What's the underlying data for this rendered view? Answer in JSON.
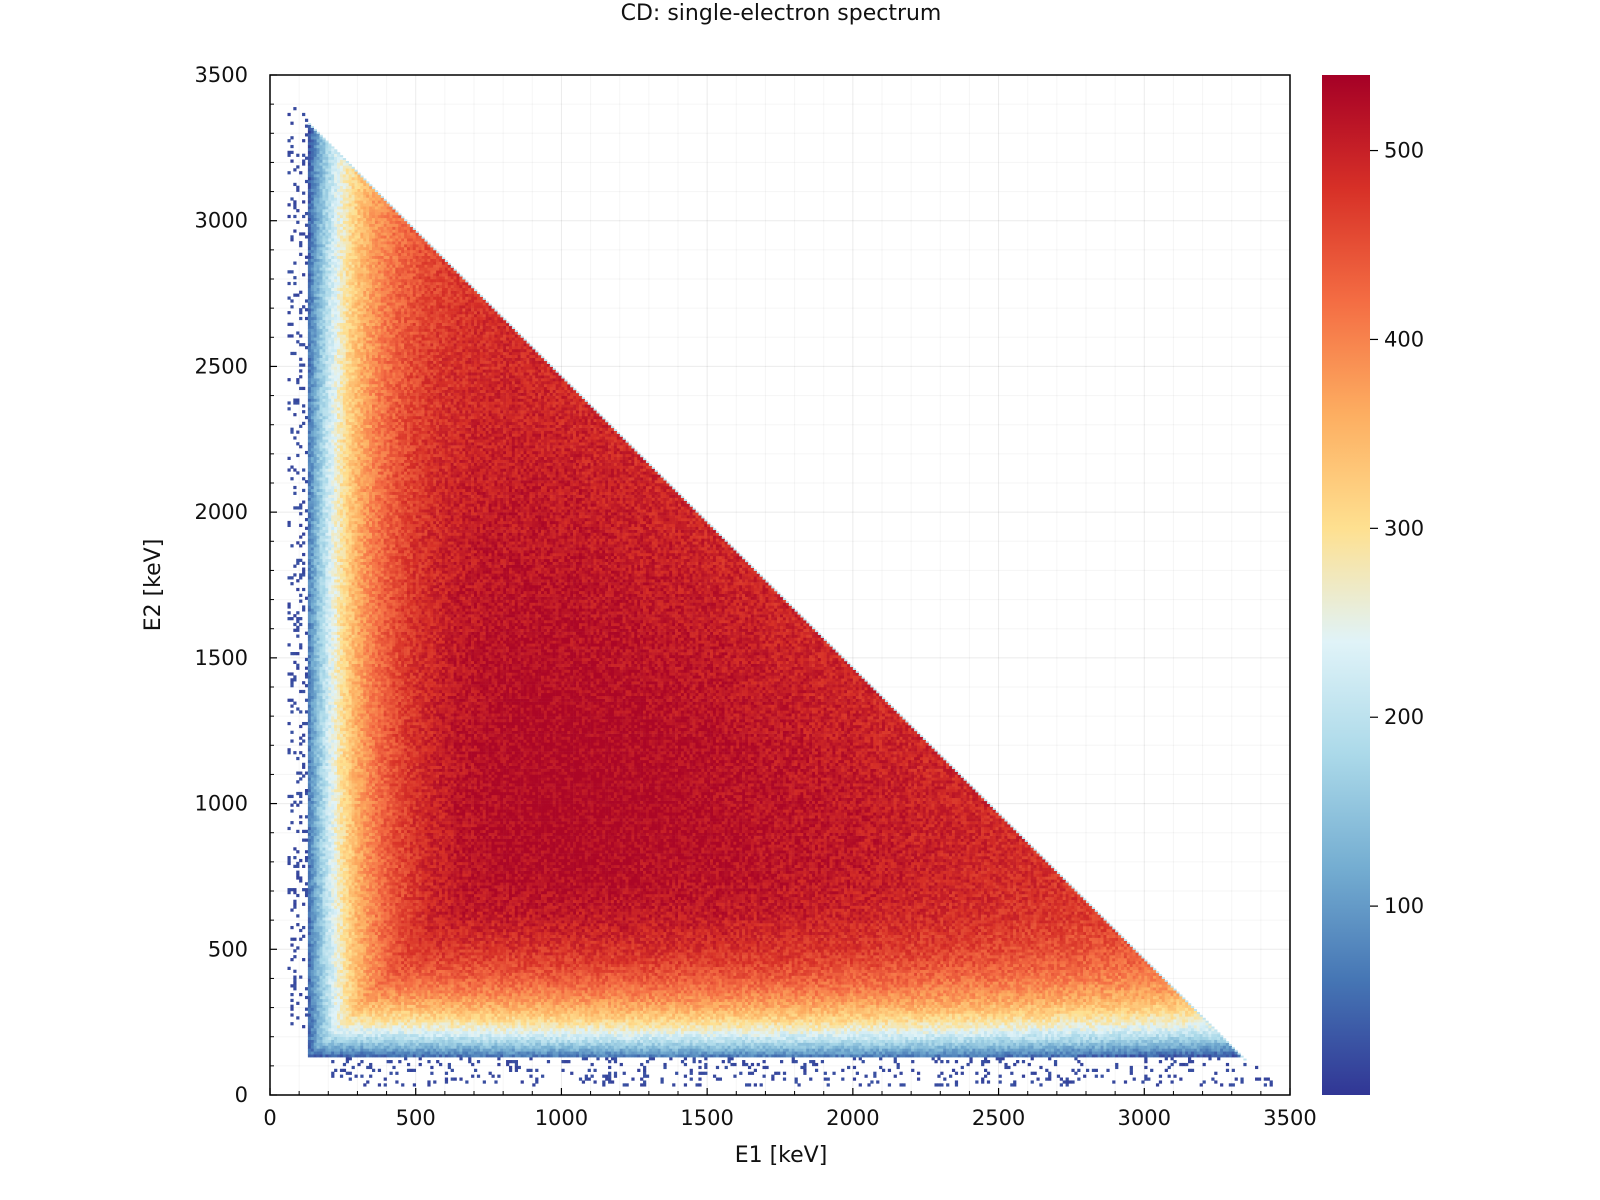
{
  "chart_data": {
    "type": "heatmap",
    "title": "CD: single-electron spectrum",
    "xlabel": "E1 [keV]",
    "ylabel": "E2 [keV]",
    "xlim": [
      0,
      3500
    ],
    "ylim": [
      0,
      3500
    ],
    "x_ticks": [
      0,
      500,
      1000,
      1500,
      2000,
      2500,
      3000,
      3500
    ],
    "y_ticks": [
      0,
      500,
      1000,
      1500,
      2000,
      2500,
      3000,
      3500
    ],
    "grid": true,
    "colorbar": {
      "colormap": "RdYlBu_r",
      "range": [
        0,
        540
      ],
      "ticks": [
        100,
        200,
        300,
        400,
        500
      ]
    },
    "colormap_stops": [
      "#313695",
      "#4575b4",
      "#74add1",
      "#abd9e9",
      "#e0f3f8",
      "#fee090",
      "#fdae61",
      "#f46d43",
      "#d73027",
      "#a50026"
    ],
    "region": {
      "e_min": 130,
      "e_sum_max": 3480,
      "peak_count": 500,
      "max_count": 540
    }
  }
}
